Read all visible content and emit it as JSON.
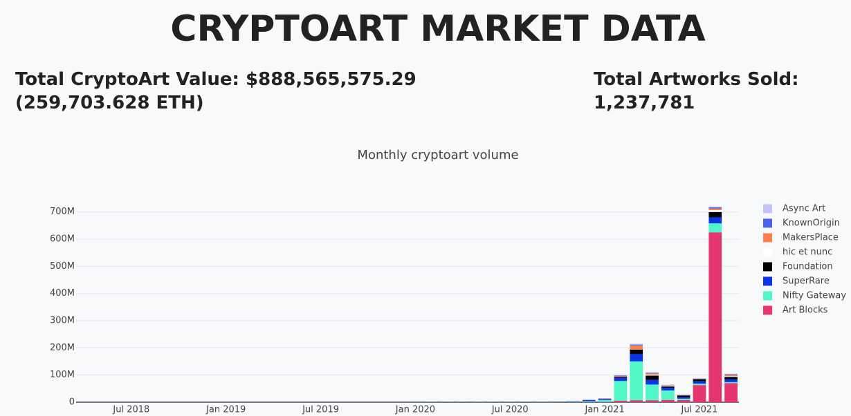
{
  "header": {
    "title": "CRYPTOART MARKET DATA"
  },
  "stats": {
    "total_value": "Total CryptoArt Value: $888,565,575.29 (259,703.628 ETH)",
    "total_sold": "Total Artworks Sold: 1,237,781"
  },
  "chart_data": {
    "type": "stacked_bar",
    "title": "Monthly cryptoart volume",
    "x": [
      "2018-04",
      "2018-05",
      "2018-06",
      "2018-07",
      "2018-08",
      "2018-09",
      "2018-10",
      "2018-11",
      "2018-12",
      "2019-01",
      "2019-02",
      "2019-03",
      "2019-04",
      "2019-05",
      "2019-06",
      "2019-07",
      "2019-08",
      "2019-09",
      "2019-10",
      "2019-11",
      "2019-12",
      "2020-01",
      "2020-02",
      "2020-03",
      "2020-04",
      "2020-05",
      "2020-06",
      "2020-07",
      "2020-08",
      "2020-09",
      "2020-10",
      "2020-11",
      "2020-12",
      "2021-01",
      "2021-02",
      "2021-03",
      "2021-04",
      "2021-05",
      "2021-06",
      "2021-07",
      "2021-08",
      "2021-09"
    ],
    "xlim": [
      "2018-04",
      "2021-09"
    ],
    "xticks": [
      {
        "value": "2018-07",
        "label": "Jul 2018"
      },
      {
        "value": "2019-01",
        "label": "Jan 2019"
      },
      {
        "value": "2019-07",
        "label": "Jul 2019"
      },
      {
        "value": "2020-01",
        "label": "Jan 2020"
      },
      {
        "value": "2020-07",
        "label": "Jul 2020"
      },
      {
        "value": "2021-01",
        "label": "Jan 2021"
      },
      {
        "value": "2021-07",
        "label": "Jul 2021"
      }
    ],
    "ylim": [
      0,
      740000000
    ],
    "yticks": [
      0,
      {
        "value": 100000000,
        "label": "100M"
      },
      {
        "value": 200000000,
        "label": "200M"
      },
      {
        "value": 300000000,
        "label": "300M"
      },
      {
        "value": 400000000,
        "label": "400M"
      },
      {
        "value": 500000000,
        "label": "500M"
      },
      {
        "value": 600000000,
        "label": "600M"
      },
      {
        "value": 700000000,
        "label": "700M"
      }
    ],
    "grid": true,
    "series": [
      {
        "name": "Art Blocks",
        "color": "#e6356f",
        "values": [
          0,
          0,
          0,
          0,
          0,
          0,
          0,
          0,
          0,
          0,
          0,
          0,
          0,
          0,
          0,
          0,
          0,
          0,
          0,
          0,
          0,
          0,
          0,
          0,
          0,
          0,
          0,
          0,
          0,
          0,
          0,
          0,
          500000.0,
          1000000.0,
          5000000.0,
          7000000.0,
          7000000.0,
          8000000.0,
          8000000.0,
          63000000.0,
          625000000.0,
          70000000.0
        ]
      },
      {
        "name": "Nifty Gateway",
        "color": "#50f5c8",
        "values": [
          0,
          0,
          0,
          0,
          0,
          0,
          0,
          0,
          0,
          0,
          0,
          0,
          0,
          0,
          0,
          0,
          0,
          0,
          0,
          0,
          0,
          300000.0,
          300000.0,
          300000.0,
          300000.0,
          300000.0,
          300000.0,
          300000.0,
          300000.0,
          300000.0,
          1000000.0,
          1500000.0,
          3000000.0,
          7000000.0,
          73000000.0,
          143000000.0,
          58000000.0,
          35000000.0,
          5000000.0,
          5000000.0,
          33000000.0,
          4000000.0
        ]
      },
      {
        "name": "SuperRare",
        "color": "#0a35e6",
        "values": [
          300000.0,
          300000.0,
          400000.0,
          200000.0,
          300000.0,
          200000.0,
          200000.0,
          300000.0,
          200000.0,
          300000.0,
          300000.0,
          400000.0,
          300000.0,
          300000.0,
          400000.0,
          300000.0,
          300000.0,
          300000.0,
          400000.0,
          300000.0,
          300000.0,
          300000.0,
          400000.0,
          300000.0,
          300000.0,
          400000.0,
          300000.0,
          400000.0,
          300000.0,
          500000.0,
          1000000.0,
          1500000.0,
          4000000.0,
          4000000.0,
          12000000.0,
          27000000.0,
          17000000.0,
          10000000.0,
          6000000.0,
          9000000.0,
          22000000.0,
          10000000.0
        ]
      },
      {
        "name": "Foundation",
        "color": "#000000",
        "values": [
          0,
          0,
          0,
          0,
          0,
          0,
          0,
          0,
          0,
          0,
          0,
          0,
          0,
          0,
          0,
          0,
          0,
          0,
          0,
          0,
          0,
          0,
          0,
          0,
          0,
          0,
          0,
          0,
          0,
          0,
          0,
          0,
          0,
          0,
          3000000.0,
          17000000.0,
          16000000.0,
          5000000.0,
          6000000.0,
          8000000.0,
          20000000.0,
          9000000.0
        ]
      },
      {
        "name": "hic et nunc",
        "color": "#ffffff",
        "values": [
          0,
          0,
          0,
          0,
          0,
          0,
          0,
          0,
          0,
          0,
          0,
          0,
          0,
          0,
          0,
          0,
          0,
          0,
          0,
          0,
          0,
          0,
          0,
          0,
          0,
          0,
          0,
          0,
          0,
          0,
          0,
          0,
          0,
          0,
          0,
          1000000.0,
          3000000.0,
          3000000.0,
          2000000.0,
          2000000.0,
          7000000.0,
          3000000.0
        ]
      },
      {
        "name": "MakersPlace",
        "color": "#ff7f50",
        "values": [
          100000.0,
          100000.0,
          100000.0,
          100000.0,
          100000.0,
          100000.0,
          100000.0,
          100000.0,
          100000.0,
          100000.0,
          100000.0,
          100000.0,
          100000.0,
          100000.0,
          100000.0,
          100000.0,
          100000.0,
          100000.0,
          100000.0,
          100000.0,
          100000.0,
          100000.0,
          100000.0,
          100000.0,
          100000.0,
          100000.0,
          100000.0,
          100000.0,
          100000.0,
          100000.0,
          300000.0,
          500000.0,
          1000000.0,
          1500000.0,
          3000000.0,
          14000000.0,
          5000000.0,
          2000000.0,
          1000000.0,
          500000.0,
          6000000.0,
          5000000.0
        ]
      },
      {
        "name": "KnownOrigin",
        "color": "#4a63ef",
        "values": [
          100000.0,
          100000.0,
          100000.0,
          100000.0,
          100000.0,
          100000.0,
          100000.0,
          100000.0,
          100000.0,
          100000.0,
          100000.0,
          100000.0,
          100000.0,
          100000.0,
          100000.0,
          100000.0,
          100000.0,
          100000.0,
          100000.0,
          100000.0,
          100000.0,
          100000.0,
          100000.0,
          100000.0,
          100000.0,
          100000.0,
          100000.0,
          100000.0,
          100000.0,
          100000.0,
          300000.0,
          300000.0,
          500000.0,
          500000.0,
          2000000.0,
          3000000.0,
          2000000.0,
          1000000.0,
          500000.0,
          500000.0,
          4000000.0,
          2000000.0
        ]
      },
      {
        "name": "Async Art",
        "color": "#c5c3f5",
        "values": [
          0,
          0,
          0,
          0,
          0,
          0,
          0,
          0,
          0,
          0,
          0,
          0,
          0,
          0,
          0,
          0,
          0,
          0,
          0,
          0,
          0,
          0,
          200000.0,
          200000.0,
          200000.0,
          200000.0,
          200000.0,
          200000.0,
          200000.0,
          200000.0,
          500000.0,
          500000.0,
          1000000.0,
          1000000.0,
          2000000.0,
          3000000.0,
          2000000.0,
          1000000.0,
          500000.0,
          500000.0,
          3000000.0,
          2000000.0
        ]
      }
    ]
  }
}
